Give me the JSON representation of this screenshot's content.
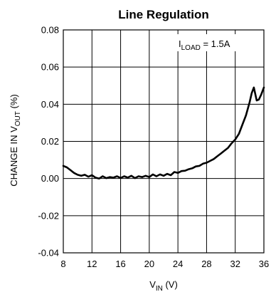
{
  "chart_data": {
    "type": "line",
    "title": "Line Regulation",
    "xlabel": {
      "main": "V",
      "sub": "IN",
      "unit": " (V)"
    },
    "ylabel": {
      "pre": "CHANGE IN V",
      "sub": "OUT",
      "post": " (%)"
    },
    "annotation": {
      "main": "I",
      "sub": "LOAD",
      "post": " = 1.5A"
    },
    "xlim": [
      8,
      36
    ],
    "ylim": [
      -0.04,
      0.08
    ],
    "x_ticks": [
      8,
      12,
      16,
      20,
      24,
      28,
      32,
      36
    ],
    "x_tick_labels": [
      "8",
      "12",
      "16",
      "20",
      "24",
      "28",
      "32",
      "36"
    ],
    "y_ticks": [
      -0.04,
      -0.02,
      0,
      0.02,
      0.04,
      0.06,
      0.08
    ],
    "y_tick_labels": [
      "-0.04",
      "-0.02",
      "0.00",
      "0.02",
      "0.04",
      "0.06",
      "0.08"
    ],
    "grid": true,
    "series": [
      {
        "x": [
          8,
          8.5,
          9,
          9.5,
          10,
          10.5,
          11,
          11.5,
          12,
          12.5,
          13,
          13.5,
          14,
          14.5,
          15,
          15.5,
          16,
          16.5,
          17,
          17.5,
          18,
          18.5,
          19,
          19.5,
          20,
          20.5,
          21,
          21.5,
          22,
          22.5,
          23,
          23.5,
          24,
          24.5,
          25,
          25.5,
          26,
          26.5,
          27,
          27.5,
          28,
          28.5,
          29,
          29.5,
          30,
          30.5,
          31,
          31.5,
          32,
          32.5,
          33,
          33.5,
          34,
          34.3,
          34.6,
          35,
          35.3,
          35.6,
          36
        ],
        "y": [
          0.0068,
          0.006,
          0.0045,
          0.003,
          0.002,
          0.0015,
          0.002,
          0.001,
          0.0018,
          0.0005,
          0.0,
          0.0012,
          0.0002,
          0.0008,
          0.0005,
          0.0012,
          0.0003,
          0.0012,
          0.0005,
          0.0015,
          0.0002,
          0.0012,
          0.0008,
          0.0015,
          0.0008,
          0.0022,
          0.0012,
          0.0022,
          0.0015,
          0.0025,
          0.0018,
          0.0035,
          0.003,
          0.004,
          0.0042,
          0.005,
          0.0055,
          0.0065,
          0.0068,
          0.008,
          0.0085,
          0.0095,
          0.0105,
          0.012,
          0.0135,
          0.015,
          0.0165,
          0.019,
          0.021,
          0.024,
          0.029,
          0.034,
          0.041,
          0.046,
          0.049,
          0.042,
          0.0425,
          0.045,
          0.049
        ]
      }
    ]
  }
}
